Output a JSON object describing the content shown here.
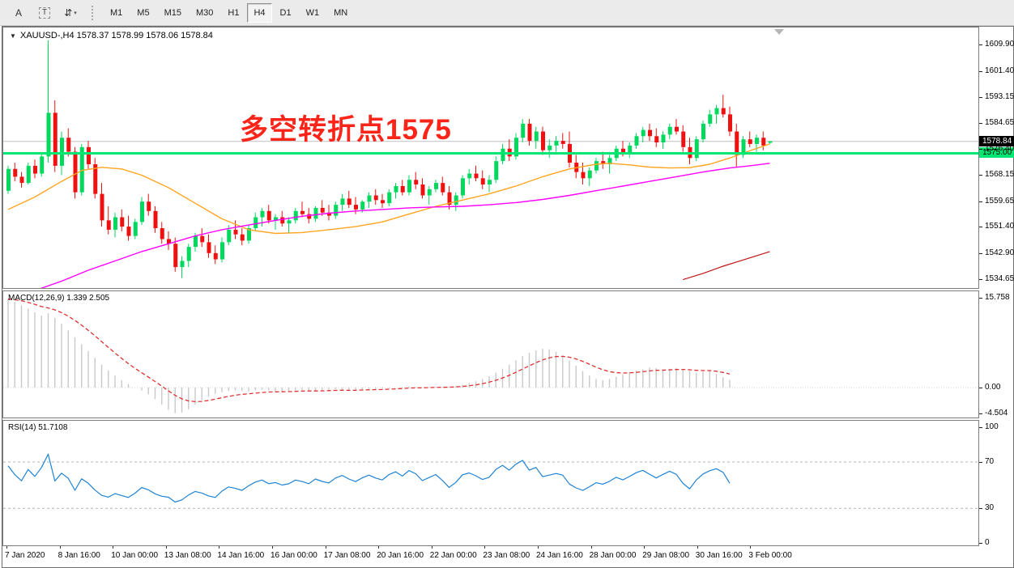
{
  "toolbar": {
    "cursor_label": "A",
    "text_label": "T",
    "arrows_icon": "⇵",
    "dropdown_caret": "▾",
    "timeframes": [
      "M1",
      "M5",
      "M15",
      "M30",
      "H1",
      "H4",
      "D1",
      "W1",
      "MN"
    ],
    "active_timeframe": "H4"
  },
  "chart": {
    "symbol_dropdown_icon": "▼",
    "symbol_period": "XAUUSD-,H4",
    "ohlc": "1578.37 1578.99 1578.06 1578.84",
    "annotation": "多空转折点1575"
  },
  "price_axis": {
    "ticks": [
      "1609.90",
      "1601.40",
      "1593.15",
      "1584.65",
      "1576.40",
      "1568.15",
      "1559.65",
      "1551.40",
      "1542.90",
      "1534.65"
    ],
    "current_price": "1578.84",
    "level_price": "1575.00"
  },
  "macd": {
    "label": "MACD(12,26,9)",
    "values": "1.339 2.505",
    "axis": [
      "15.758",
      "0.00",
      "-4.504"
    ]
  },
  "rsi": {
    "label": "RSI(14)",
    "value": "51.7108",
    "axis": [
      "100",
      "70",
      "30",
      "0"
    ]
  },
  "time_axis": {
    "labels": [
      "7 Jan 2020",
      "8 Jan 16:00",
      "10 Jan 00:00",
      "13 Jan 08:00",
      "14 Jan 16:00",
      "16 Jan 00:00",
      "17 Jan 08:00",
      "20 Jan 16:00",
      "22 Jan 00:00",
      "23 Jan 08:00",
      "24 Jan 16:00",
      "28 Jan 00:00",
      "29 Jan 08:00",
      "30 Jan 16:00",
      "3 Feb 00:00"
    ]
  },
  "chart_data": {
    "type": "candlestick",
    "symbol": "XAUUSD",
    "period": "H4",
    "price_range": {
      "top_tick": 1609.9,
      "bottom_tick": 1534.65
    },
    "level_line_price": 1575.0,
    "bid_line_price": 1578.84,
    "candles": [
      [
        1563,
        1571,
        1562,
        1570
      ],
      [
        1570,
        1572,
        1566,
        1567.5
      ],
      [
        1567.5,
        1569,
        1564,
        1565.5
      ],
      [
        1565.5,
        1572,
        1565,
        1571
      ],
      [
        1571,
        1573,
        1567,
        1568.5
      ],
      [
        1568.5,
        1575,
        1567.5,
        1574
      ],
      [
        1574,
        1611.3,
        1572,
        1588
      ],
      [
        1588,
        1592,
        1569,
        1571
      ],
      [
        1571,
        1582,
        1568,
        1580
      ],
      [
        1580,
        1583,
        1574,
        1575.5
      ],
      [
        1575.5,
        1577,
        1560.5,
        1562.5
      ],
      [
        1562.5,
        1578,
        1561.5,
        1577
      ],
      [
        1577,
        1579,
        1570,
        1571.5
      ],
      [
        1571.5,
        1573.5,
        1560.5,
        1562
      ],
      [
        1562,
        1565.5,
        1551.5,
        1553.5
      ],
      [
        1553.5,
        1558,
        1549,
        1550.5
      ],
      [
        1550.5,
        1556,
        1548,
        1554.5
      ],
      [
        1554.5,
        1557,
        1550,
        1551.5
      ],
      [
        1551.5,
        1555,
        1547,
        1548.5
      ],
      [
        1548.5,
        1554,
        1547.5,
        1553
      ],
      [
        1553,
        1561,
        1552,
        1559.5
      ],
      [
        1559.5,
        1562,
        1555,
        1556.5
      ],
      [
        1556.5,
        1558,
        1549.5,
        1551
      ],
      [
        1551,
        1553,
        1546,
        1547.5
      ],
      [
        1547.5,
        1550,
        1544,
        1546
      ],
      [
        1546,
        1548,
        1537,
        1538.5
      ],
      [
        1538.5,
        1542,
        1535,
        1540.5
      ],
      [
        1540.5,
        1546,
        1538.5,
        1545
      ],
      [
        1545,
        1549.5,
        1543.5,
        1548.5
      ],
      [
        1548.5,
        1551,
        1545,
        1546.5
      ],
      [
        1546.5,
        1549,
        1541.5,
        1543
      ],
      [
        1543,
        1545.5,
        1539.5,
        1541
      ],
      [
        1541,
        1548,
        1540,
        1546.5
      ],
      [
        1546.5,
        1552,
        1545.5,
        1550.5
      ],
      [
        1550.5,
        1553.5,
        1547.5,
        1549
      ],
      [
        1549,
        1551,
        1545.5,
        1547
      ],
      [
        1547,
        1552,
        1546,
        1551
      ],
      [
        1551,
        1556,
        1550,
        1554.5
      ],
      [
        1554.5,
        1557.5,
        1551.5,
        1556.5
      ],
      [
        1556.5,
        1558.5,
        1552.5,
        1553.5
      ],
      [
        1553.5,
        1555.5,
        1550.5,
        1554.5
      ],
      [
        1554.5,
        1556.5,
        1551.5,
        1552.5
      ],
      [
        1552.5,
        1554.5,
        1549.5,
        1553.5
      ],
      [
        1553.5,
        1557.5,
        1552.5,
        1556.5
      ],
      [
        1556.5,
        1559.5,
        1554.5,
        1555.5
      ],
      [
        1555.5,
        1557.5,
        1552.5,
        1554
      ],
      [
        1554,
        1558,
        1553,
        1557.5
      ],
      [
        1557.5,
        1560,
        1555,
        1556
      ],
      [
        1556,
        1558.5,
        1553.5,
        1555
      ],
      [
        1555,
        1559.5,
        1554,
        1558.5
      ],
      [
        1558.5,
        1562,
        1556.5,
        1560.5
      ],
      [
        1560.5,
        1563,
        1557.5,
        1558.5
      ],
      [
        1558.5,
        1561,
        1555.5,
        1557
      ],
      [
        1557,
        1560,
        1556,
        1559.5
      ],
      [
        1559.5,
        1562.5,
        1557.5,
        1561.5
      ],
      [
        1561.5,
        1563.5,
        1558.5,
        1560
      ],
      [
        1560,
        1562,
        1557.5,
        1559
      ],
      [
        1559,
        1563.5,
        1558,
        1562.5
      ],
      [
        1562.5,
        1565.5,
        1560.5,
        1564.5
      ],
      [
        1564.5,
        1566.5,
        1561.5,
        1562.5
      ],
      [
        1562.5,
        1568,
        1561.5,
        1566.5
      ],
      [
        1566.5,
        1569,
        1563.5,
        1565
      ],
      [
        1565,
        1567,
        1560.5,
        1561.5
      ],
      [
        1561.5,
        1564.5,
        1558.5,
        1563.5
      ],
      [
        1563.5,
        1566.5,
        1562.5,
        1565.5
      ],
      [
        1565.5,
        1567.5,
        1561.5,
        1562.5
      ],
      [
        1562.5,
        1564.5,
        1557,
        1558.5
      ],
      [
        1558.5,
        1562.5,
        1556.5,
        1561.5
      ],
      [
        1561.5,
        1568,
        1560.5,
        1567
      ],
      [
        1567,
        1570,
        1565,
        1568.5
      ],
      [
        1568.5,
        1571,
        1566,
        1567
      ],
      [
        1567,
        1569.5,
        1563.5,
        1565
      ],
      [
        1565,
        1568,
        1562.5,
        1566.5
      ],
      [
        1566.5,
        1574,
        1565.5,
        1572.5
      ],
      [
        1572.5,
        1578,
        1571.5,
        1576.5
      ],
      [
        1576.5,
        1579.5,
        1572.5,
        1574
      ],
      [
        1574,
        1581.5,
        1573,
        1580
      ],
      [
        1580,
        1586,
        1578.5,
        1584.5
      ],
      [
        1584.5,
        1586,
        1577.5,
        1579
      ],
      [
        1579,
        1583.5,
        1576.5,
        1582
      ],
      [
        1582,
        1583.5,
        1574.5,
        1576
      ],
      [
        1576,
        1579.5,
        1573.5,
        1577.5
      ],
      [
        1577.5,
        1580.5,
        1575.5,
        1579
      ],
      [
        1579,
        1581.5,
        1576.5,
        1578
      ],
      [
        1578,
        1582,
        1570.5,
        1572
      ],
      [
        1572,
        1574.5,
        1567,
        1569
      ],
      [
        1569,
        1572,
        1565,
        1567
      ],
      [
        1567,
        1570.5,
        1564.5,
        1569.5
      ],
      [
        1569.5,
        1573.5,
        1568.5,
        1572.5
      ],
      [
        1572.5,
        1575.5,
        1570,
        1571.5
      ],
      [
        1571.5,
        1574.5,
        1568.5,
        1573.5
      ],
      [
        1573.5,
        1577.5,
        1572.5,
        1576.5
      ],
      [
        1576.5,
        1579,
        1574,
        1575
      ],
      [
        1575,
        1578.5,
        1573.5,
        1577.5
      ],
      [
        1577.5,
        1581.5,
        1576.5,
        1580.5
      ],
      [
        1580.5,
        1583.5,
        1578.5,
        1582.5
      ],
      [
        1582.5,
        1584.5,
        1579,
        1580.5
      ],
      [
        1580.5,
        1583,
        1577,
        1578.5
      ],
      [
        1578.5,
        1582,
        1576.5,
        1581
      ],
      [
        1581,
        1584.5,
        1579.5,
        1583.5
      ],
      [
        1583.5,
        1586,
        1581,
        1582
      ],
      [
        1582,
        1584,
        1575.5,
        1577
      ],
      [
        1577,
        1580,
        1571.5,
        1573.5
      ],
      [
        1573.5,
        1580.5,
        1572.5,
        1579.5
      ],
      [
        1579.5,
        1585.5,
        1578.5,
        1584.5
      ],
      [
        1584.5,
        1589,
        1583.5,
        1587.5
      ],
      [
        1587.5,
        1590.5,
        1584.5,
        1589.5
      ],
      [
        1589.5,
        1593.8,
        1586.5,
        1587.5
      ],
      [
        1587.5,
        1590,
        1580.5,
        1582
      ],
      [
        1582,
        1584.5,
        1570.5,
        1574.5
      ],
      [
        1574.5,
        1580.5,
        1573.5,
        1579.5
      ],
      [
        1579.5,
        1582,
        1577,
        1578
      ],
      [
        1578,
        1581,
        1575.5,
        1580
      ],
      [
        1580,
        1582,
        1576,
        1577.5
      ],
      [
        1578.37,
        1578.99,
        1578.06,
        1578.84
      ]
    ],
    "ma_orange_points": [
      [
        0,
        1557
      ],
      [
        4,
        1561
      ],
      [
        8,
        1566
      ],
      [
        11,
        1569.5
      ],
      [
        14,
        1570.5
      ],
      [
        17,
        1570
      ],
      [
        20,
        1568
      ],
      [
        24,
        1564
      ],
      [
        28,
        1559
      ],
      [
        32,
        1554
      ],
      [
        36,
        1550.5
      ],
      [
        40,
        1549.3
      ],
      [
        44,
        1549.6
      ],
      [
        48,
        1550.5
      ],
      [
        52,
        1551.5
      ],
      [
        56,
        1553
      ],
      [
        60,
        1555.5
      ],
      [
        64,
        1558
      ],
      [
        68,
        1560
      ],
      [
        72,
        1562
      ],
      [
        76,
        1564.5
      ],
      [
        80,
        1567.5
      ],
      [
        84,
        1570
      ],
      [
        88,
        1571.5
      ],
      [
        90,
        1571.8
      ],
      [
        93,
        1571.3
      ],
      [
        96,
        1570.6
      ],
      [
        99,
        1570.3
      ],
      [
        102,
        1570.4
      ],
      [
        105,
        1571.5
      ],
      [
        108,
        1573.5
      ],
      [
        111,
        1575.8
      ],
      [
        114,
        1578
      ]
    ],
    "ma_magenta_points": [
      [
        4,
        1531
      ],
      [
        8,
        1534
      ],
      [
        12,
        1537.5
      ],
      [
        16,
        1540.5
      ],
      [
        20,
        1543.5
      ],
      [
        24,
        1546
      ],
      [
        28,
        1548.5
      ],
      [
        32,
        1550.5
      ],
      [
        36,
        1552
      ],
      [
        40,
        1553.5
      ],
      [
        44,
        1554.8
      ],
      [
        48,
        1555.8
      ],
      [
        52,
        1556.5
      ],
      [
        56,
        1557
      ],
      [
        60,
        1557.5
      ],
      [
        64,
        1557.8
      ],
      [
        68,
        1558
      ],
      [
        72,
        1558.5
      ],
      [
        76,
        1559.2
      ],
      [
        80,
        1560.2
      ],
      [
        84,
        1561.5
      ],
      [
        88,
        1563
      ],
      [
        92,
        1564.5
      ],
      [
        96,
        1566
      ],
      [
        100,
        1567.5
      ],
      [
        104,
        1569
      ],
      [
        108,
        1570.3
      ],
      [
        111,
        1571
      ],
      [
        114,
        1571.8
      ]
    ],
    "ma_darkred_points": [
      [
        101,
        1534.5
      ],
      [
        104,
        1536.5
      ],
      [
        107,
        1538.8
      ],
      [
        110,
        1540.8
      ],
      [
        114,
        1543.5
      ]
    ],
    "macd": {
      "params": [
        12,
        26,
        9
      ],
      "current_macd": 1.339,
      "current_signal": 2.505,
      "axis_max": 15.758,
      "axis_min": -4.504,
      "histogram": [
        15.5,
        15.0,
        14.4,
        13.8,
        13.2,
        12.6,
        13.0,
        12.2,
        11.2,
        10.0,
        8.8,
        7.6,
        6.4,
        5.2,
        4.0,
        3.0,
        2.1,
        1.3,
        0.6,
        0.0,
        -0.5,
        -1.2,
        -2.0,
        -3.0,
        -3.9,
        -4.5,
        -4.4,
        -3.8,
        -3.0,
        -2.2,
        -1.6,
        -1.1,
        -0.8,
        -0.6,
        -0.5,
        -0.6,
        -0.7,
        -0.5,
        -0.4,
        -0.5,
        -0.6,
        -0.7,
        -0.6,
        -0.5,
        -0.4,
        -0.5,
        -0.6,
        -0.5,
        -0.4,
        -0.3,
        -0.4,
        -0.5,
        -0.4,
        -0.3,
        -0.2,
        -0.3,
        -0.2,
        -0.1,
        0.0,
        0.1,
        0.2,
        0.1,
        0.0,
        0.1,
        0.2,
        0.1,
        0.2,
        0.3,
        0.5,
        0.8,
        1.1,
        1.5,
        2.0,
        2.6,
        3.3,
        4.0,
        4.8,
        5.5,
        6.1,
        6.5,
        6.8,
        6.7,
        6.3,
        5.6,
        4.7,
        3.8,
        2.9,
        2.1,
        1.5,
        1.3,
        1.5,
        1.9,
        2.3,
        2.7,
        3.0,
        3.2,
        3.5,
        3.4,
        3.2,
        3.3,
        3.4,
        3.2,
        2.9,
        2.6,
        2.8,
        3.0,
        2.4,
        1.8,
        1.339
      ]
    },
    "rsi": {
      "period": 14,
      "current": 51.7108,
      "levels": [
        70,
        30
      ],
      "axis": [
        100,
        70,
        30,
        0
      ],
      "visible_bars": 109
    },
    "colors": {
      "up": "#00d95d",
      "down": "#ef1010",
      "ma_fast": "#ffa520",
      "ma_slow": "#ff00ff",
      "ma_long": "#c01414",
      "level_line": "#00e673",
      "bid_line": "#c0c0c0",
      "macd_hist": "#c9c9c9",
      "macd_signal": "#e03131",
      "rsi_line": "#1f83d4",
      "annotation": "#fb2419"
    }
  }
}
